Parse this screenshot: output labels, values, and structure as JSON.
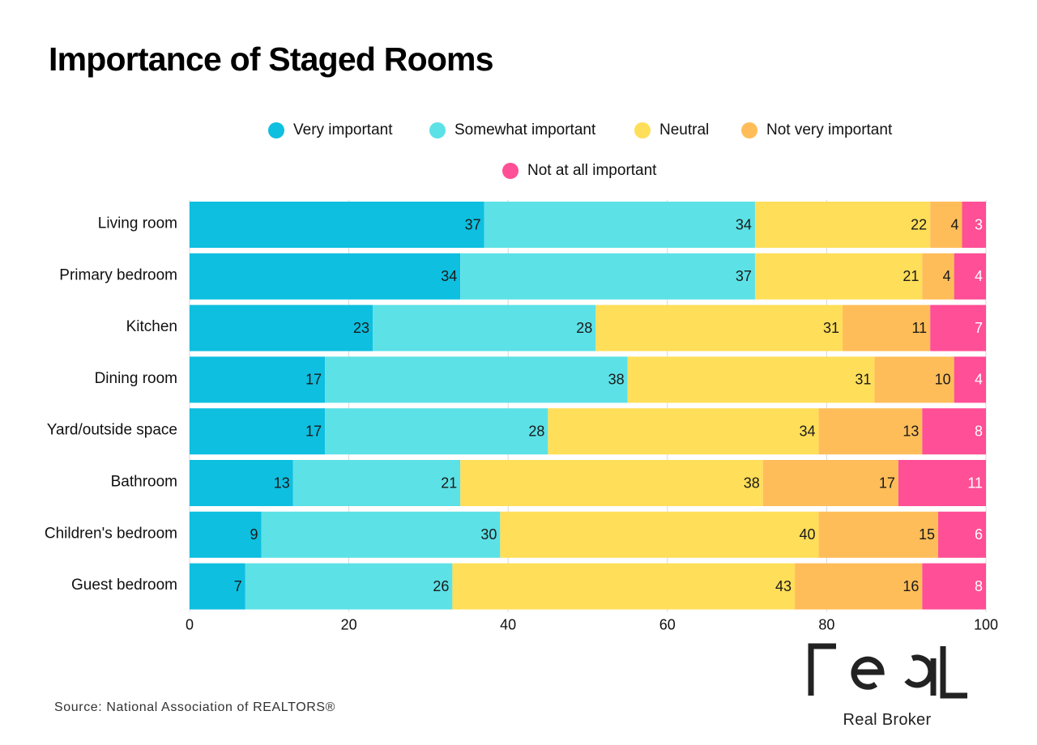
{
  "chart_data": {
    "type": "bar",
    "orientation": "horizontal",
    "stacked": true,
    "title": "Importance of Staged Rooms",
    "categories": [
      "Living room",
      "Primary bedroom",
      "Kitchen",
      "Dining room",
      "Yard/outside space",
      "Bathroom",
      "Children's bedroom",
      "Guest bedroom"
    ],
    "series": [
      {
        "name": "Very important",
        "color": "#0EBFE0",
        "label_color": "#1a1a1a",
        "values": [
          37,
          34,
          23,
          17,
          17,
          13,
          9,
          7
        ]
      },
      {
        "name": "Somewhat important",
        "color": "#5CE1E6",
        "label_color": "#1a1a1a",
        "values": [
          34,
          37,
          28,
          38,
          28,
          21,
          30,
          26
        ]
      },
      {
        "name": "Neutral",
        "color": "#FFDE59",
        "label_color": "#1a1a1a",
        "values": [
          22,
          21,
          31,
          31,
          34,
          38,
          40,
          43
        ]
      },
      {
        "name": "Not very important",
        "color": "#FFBD59",
        "label_color": "#1a1a1a",
        "values": [
          4,
          4,
          11,
          10,
          13,
          17,
          15,
          16
        ]
      },
      {
        "name": "Not at all important",
        "color": "#FF4F96",
        "label_color": "#ffffff",
        "values": [
          3,
          4,
          7,
          4,
          8,
          11,
          6,
          8
        ]
      }
    ],
    "xlim": [
      0,
      100
    ],
    "xticks": [
      "0",
      "20",
      "40",
      "60",
      "80",
      "100"
    ],
    "xlabel": "",
    "ylabel": "",
    "grid": "vertical",
    "legend_position": "top"
  },
  "source": "Source: National Association of REALTORS®",
  "logo": {
    "wordmark": "real",
    "text": "Real Broker"
  }
}
